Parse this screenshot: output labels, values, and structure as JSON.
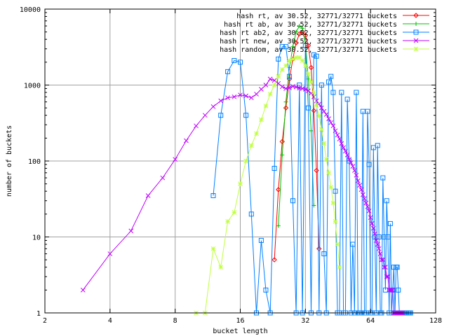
{
  "chart_data": {
    "type": "line",
    "xlabel": "bucket length",
    "ylabel": "number of buckets",
    "x_scale": "log2",
    "y_scale": "log10",
    "xlim": [
      2,
      128
    ],
    "ylim": [
      1,
      10000
    ],
    "x_ticks": [
      "2",
      "4",
      "8",
      "16",
      "32",
      "64",
      "128"
    ],
    "y_ticks": [
      "1",
      "10",
      "100",
      "1000",
      "10000"
    ],
    "grid": true,
    "legend_position": "top-right",
    "series": [
      {
        "name": "hash rt, av 30.52, 32771/32771 buckets",
        "color": "#ff0000",
        "marker": "diamond",
        "x": [
          23,
          24,
          25,
          26,
          27,
          28,
          29,
          30,
          31,
          32,
          33,
          34,
          35,
          36,
          37
        ],
        "y": [
          5,
          42,
          180,
          500,
          1200,
          2200,
          3600,
          4700,
          5000,
          4500,
          3300,
          1700,
          460,
          75,
          7
        ]
      },
      {
        "name": "hash rt ab, av 30.52, 32771/32771 buckets",
        "color": "#00c000",
        "marker": "plus",
        "x": [
          24,
          25,
          26,
          27,
          28,
          29,
          30,
          31,
          32,
          33,
          34,
          35
        ],
        "y": [
          14,
          120,
          600,
          1700,
          3200,
          5000,
          6000,
          5600,
          3500,
          1200,
          250,
          26
        ]
      },
      {
        "name": "hash rt ab2, av 30.52, 32771/32771 buckets",
        "color": "#0080ff",
        "marker": "square",
        "x": [
          12,
          13,
          14,
          15,
          16,
          17,
          18,
          19,
          20,
          21,
          22,
          23,
          24,
          25,
          26,
          27,
          28,
          29,
          30,
          31,
          32,
          33,
          34,
          35,
          36,
          37,
          38,
          39,
          40,
          41,
          42,
          43,
          44,
          45,
          46,
          47,
          48,
          49,
          50,
          51,
          52,
          53,
          54,
          55,
          56,
          57,
          58,
          59,
          60,
          61,
          62,
          63,
          64,
          65,
          66,
          67,
          68,
          69,
          70,
          71,
          72,
          73,
          74,
          75,
          76,
          77,
          78,
          79,
          80,
          81,
          82,
          83,
          84,
          85,
          86,
          87,
          88,
          89,
          90,
          91,
          92,
          93,
          94,
          95,
          96,
          97,
          98
        ],
        "y": [
          35,
          400,
          1500,
          2100,
          2000,
          400,
          20,
          1,
          9,
          2,
          1,
          80,
          2200,
          3200,
          3200,
          1300,
          30,
          1,
          1000,
          1,
          3300,
          500,
          1,
          2500,
          2400,
          1,
          1000,
          6,
          1,
          1100,
          1300,
          800,
          40,
          1,
          1,
          800,
          1,
          1,
          650,
          100,
          1,
          8,
          1,
          800,
          1,
          1,
          1,
          450,
          1,
          1,
          450,
          90,
          1,
          1,
          150,
          10,
          1,
          160,
          10,
          1,
          1,
          60,
          10,
          2,
          30,
          10,
          1,
          15,
          1,
          2,
          4,
          1,
          4,
          4,
          2,
          1,
          1,
          1,
          1,
          1,
          1,
          1,
          1,
          1,
          1,
          1,
          1
        ]
      },
      {
        "name": "hash rt new, av 30.52, 32771/32771 buckets",
        "color": "#c000ff",
        "marker": "x",
        "x": [
          3,
          4,
          5,
          6,
          7,
          8,
          9,
          10,
          11,
          12,
          13,
          14,
          15,
          16,
          17,
          18,
          19,
          20,
          21,
          22,
          23,
          24,
          25,
          26,
          27,
          28,
          29,
          30,
          31,
          32,
          33,
          34,
          35,
          36,
          37,
          38,
          39,
          40,
          41,
          42,
          43,
          44,
          45,
          46,
          47,
          48,
          49,
          50,
          51,
          52,
          53,
          54,
          55,
          56,
          57,
          58,
          59,
          60,
          61,
          62,
          63,
          64,
          65,
          66,
          67,
          68,
          69,
          70,
          71,
          72,
          73,
          74,
          75,
          76,
          77,
          78,
          79,
          80,
          81,
          82,
          83,
          84,
          85,
          86,
          87,
          88,
          89,
          90
        ],
        "y": [
          2,
          6,
          12,
          35,
          60,
          105,
          185,
          290,
          400,
          520,
          620,
          680,
          700,
          740,
          720,
          680,
          760,
          880,
          1000,
          1200,
          1150,
          1050,
          950,
          900,
          920,
          960,
          940,
          910,
          900,
          880,
          840,
          780,
          700,
          620,
          560,
          500,
          450,
          410,
          360,
          320,
          290,
          250,
          220,
          195,
          170,
          150,
          135,
          120,
          105,
          95,
          85,
          75,
          65,
          55,
          48,
          42,
          36,
          32,
          28,
          25,
          22,
          18,
          15,
          13,
          11,
          9,
          8,
          7,
          6,
          5,
          5,
          4,
          4,
          3,
          3,
          2,
          2,
          2,
          2,
          1,
          1,
          1,
          1,
          1,
          1,
          1,
          1,
          1
        ]
      },
      {
        "name": "hash random, av 30.52, 32771/32771 buckets",
        "color": "#c0ff40",
        "marker": "star",
        "x": [
          10,
          11,
          12,
          13,
          14,
          15,
          16,
          17,
          18,
          19,
          20,
          21,
          22,
          23,
          24,
          25,
          26,
          27,
          28,
          29,
          30,
          31,
          32,
          33,
          34,
          35,
          36,
          37,
          38,
          39,
          40,
          41,
          42,
          43,
          44,
          45,
          46
        ],
        "y": [
          1,
          1,
          7,
          4,
          16,
          21,
          50,
          100,
          160,
          230,
          350,
          530,
          760,
          1000,
          1300,
          1600,
          1800,
          2100,
          2200,
          2300,
          2300,
          2100,
          1800,
          1400,
          1100,
          800,
          540,
          390,
          260,
          170,
          105,
          70,
          45,
          28,
          16,
          8,
          4
        ]
      }
    ]
  }
}
